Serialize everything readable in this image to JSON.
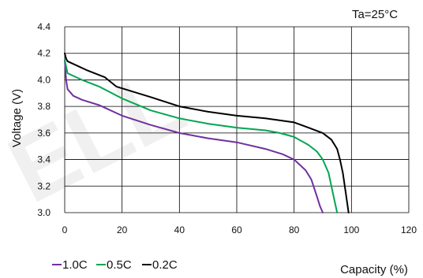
{
  "chart_data": {
    "type": "line",
    "title": "",
    "annotation": "Ta=25°C",
    "xlabel": "Capacity (%)",
    "ylabel": "Voltage (V)",
    "xlim": [
      0,
      120
    ],
    "ylim": [
      3.0,
      4.4
    ],
    "xticks": [
      "0",
      "20",
      "40",
      "60",
      "80",
      "100",
      "120"
    ],
    "yticks": [
      "3.0",
      "3.2",
      "3.4",
      "3.6",
      "3.8",
      "4.0",
      "4.2",
      "4.4"
    ],
    "grid": true,
    "legend_position": "bottom-left",
    "watermark": "ELL",
    "colors": {
      "1.0C": "#7030a0",
      "0.5C": "#00a651",
      "0.2C": "#000000",
      "grid": "#000000",
      "watermark": "#e8e8e8"
    },
    "series": [
      {
        "name": "1.0C",
        "color": "#7030a0",
        "x": [
          0,
          0.5,
          1,
          3,
          6,
          12,
          20,
          30,
          40,
          50,
          60,
          70,
          76,
          80,
          84,
          86,
          88,
          89,
          90
        ],
        "y": [
          4.15,
          4.0,
          3.93,
          3.88,
          3.85,
          3.81,
          3.73,
          3.66,
          3.6,
          3.56,
          3.53,
          3.48,
          3.44,
          3.4,
          3.32,
          3.25,
          3.12,
          3.05,
          3.0
        ]
      },
      {
        "name": "0.5C",
        "color": "#00a651",
        "x": [
          0,
          0.5,
          1,
          3,
          6,
          12,
          20,
          30,
          40,
          50,
          60,
          70,
          75,
          80,
          85,
          88,
          90,
          92,
          93,
          94,
          95
        ],
        "y": [
          4.15,
          4.1,
          4.05,
          4.03,
          4.0,
          3.95,
          3.86,
          3.77,
          3.71,
          3.67,
          3.64,
          3.62,
          3.6,
          3.57,
          3.51,
          3.46,
          3.4,
          3.3,
          3.2,
          3.1,
          3.0
        ]
      },
      {
        "name": "0.2C",
        "color": "#000000",
        "x": [
          0,
          0.5,
          1,
          3,
          8,
          14,
          18,
          30,
          40,
          50,
          60,
          70,
          80,
          85,
          90,
          93,
          95,
          96,
          97,
          98,
          99
        ],
        "y": [
          4.2,
          4.16,
          4.14,
          4.12,
          4.07,
          4.02,
          3.95,
          3.87,
          3.8,
          3.76,
          3.73,
          3.71,
          3.68,
          3.64,
          3.6,
          3.55,
          3.48,
          3.4,
          3.3,
          3.15,
          3.0
        ]
      }
    ]
  }
}
